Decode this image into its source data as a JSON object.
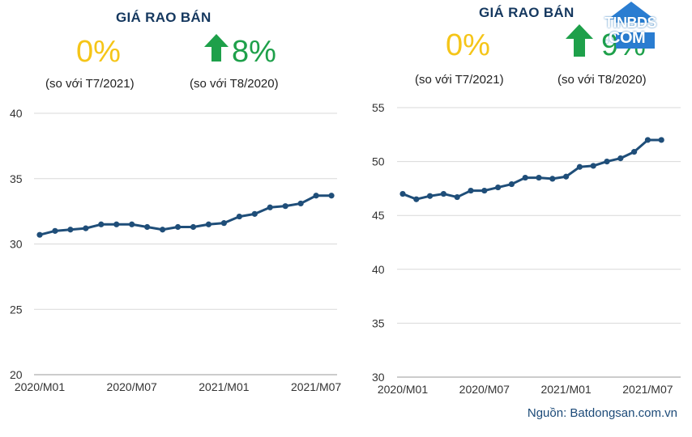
{
  "source_note": "Nguồn: Batdongsan.com.vn",
  "logo": {
    "line1": "TINBDS",
    "line2": ".COM"
  },
  "colors": {
    "line": "#1f4e79",
    "grid": "#d9d9d9",
    "neutral": "#f5c518",
    "up": "#1ea04a",
    "title": "#15385f"
  },
  "icons": [
    "arrow-up-icon",
    "house-logo-icon"
  ],
  "panels": [
    {
      "title": "GIÁ RAO BÁN",
      "mom_value": "0%",
      "mom_note": "(so với T7/2021)",
      "yoy_value": "8%",
      "yoy_note": "(so với T8/2020)"
    },
    {
      "title": "GIÁ RAO BÁN",
      "mom_value": "0%",
      "mom_note": "(so với T7/2021)",
      "yoy_value": "9%",
      "yoy_note": "(so với T8/2020)"
    }
  ],
  "chart_data": [
    {
      "type": "line",
      "ylim": [
        20,
        40
      ],
      "yticks": [
        "20",
        "25",
        "30",
        "35",
        "40"
      ],
      "xtick_labels": [
        "2020/M01",
        "2020/M07",
        "2021/M01",
        "2021/M07"
      ],
      "grid": true,
      "x": [
        "2020/M01",
        "2020/M02",
        "2020/M03",
        "2020/M04",
        "2020/M05",
        "2020/M06",
        "2020/M07",
        "2020/M08",
        "2020/M09",
        "2020/M10",
        "2020/M11",
        "2020/M12",
        "2021/M01",
        "2021/M02",
        "2021/M03",
        "2021/M04",
        "2021/M05",
        "2021/M06",
        "2021/M07",
        "2021/M08"
      ],
      "values": [
        30.7,
        31.0,
        31.1,
        31.2,
        31.5,
        31.5,
        31.5,
        31.3,
        31.1,
        31.3,
        31.3,
        31.5,
        31.6,
        32.1,
        32.3,
        32.8,
        32.9,
        33.1,
        33.7,
        33.7
      ]
    },
    {
      "type": "line",
      "ylim": [
        30,
        55
      ],
      "yticks": [
        "30",
        "35",
        "40",
        "45",
        "50",
        "55"
      ],
      "xtick_labels": [
        "2020/M01",
        "2020/M07",
        "2021/M01",
        "2021/M07"
      ],
      "grid": true,
      "x": [
        "2020/M01",
        "2020/M02",
        "2020/M03",
        "2020/M04",
        "2020/M05",
        "2020/M06",
        "2020/M07",
        "2020/M08",
        "2020/M09",
        "2020/M10",
        "2020/M11",
        "2020/M12",
        "2021/M01",
        "2021/M02",
        "2021/M03",
        "2021/M04",
        "2021/M05",
        "2021/M06",
        "2021/M07",
        "2021/M08"
      ],
      "values": [
        47.0,
        46.5,
        46.8,
        47.0,
        46.7,
        47.3,
        47.3,
        47.6,
        47.9,
        48.5,
        48.5,
        48.4,
        48.6,
        49.5,
        49.6,
        50.0,
        50.3,
        50.9,
        52.0,
        52.0
      ]
    }
  ]
}
